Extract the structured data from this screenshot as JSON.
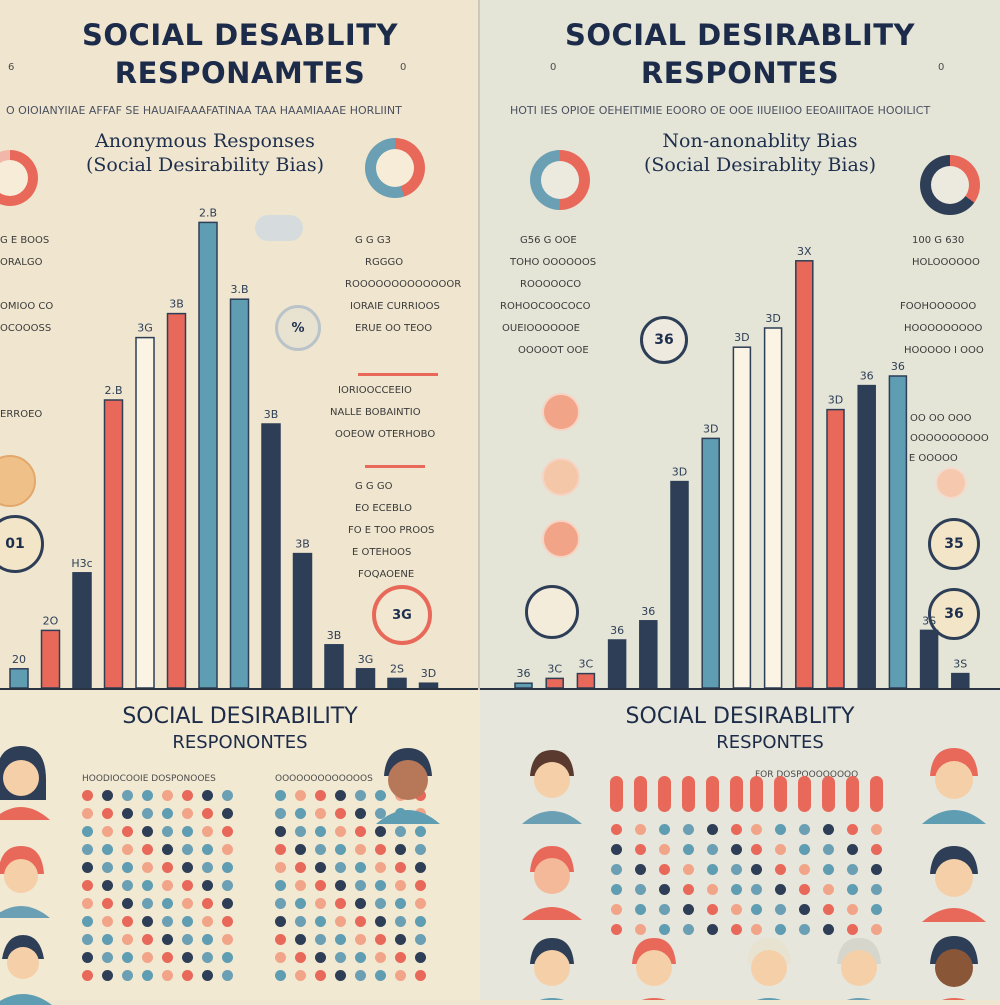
{
  "left": {
    "title_line1": "SOCIAL DESABLITY",
    "title_line2": "RESPONAMTES",
    "marker_left": "6",
    "marker_right": "0",
    "subtitle": "O OIOIANYIIAE AFFAF SE HAUAIFAAAFATINAA TAA HAAMIAAAE HORLIINT",
    "chart_heading_line1": "Anonymous Responses",
    "chart_heading_line2": "(Social Desirability Bias)",
    "side_badge_top": "%",
    "side_badge_bottom": "3G",
    "left_badge": "01",
    "side_text_right": [
      "G G G3",
      "RGGGO",
      "ROOOOOOOOOOOOOR",
      "IORAIE CURRIOOS",
      "ERUE OO TEOO",
      "IORIOOCCEEIO",
      "NALLE BOBAINTIO",
      "OOEOW OTERHOBO",
      "G  G  GO",
      "EO  ECEBLO",
      "FO E TOO PROOS",
      "E OTEHOOS",
      "FOQAOENE"
    ],
    "side_text_left": [
      "G E BOOS",
      "ORALGO",
      "OMIOO CO",
      "OCOOOSS",
      "ERROEO"
    ],
    "bottom_title_line1": "SOCIAL DESIRABILITY",
    "bottom_title_line2": "RESPONONTES",
    "legend_a": "HOODIOCOOIE DOSPONOOES",
    "legend_b": "OOOOOOOOOOOOOS"
  },
  "right": {
    "title_line1": "SOCIAL DESIRABLITY",
    "title_line2": "RESPONTES",
    "marker_left": "0",
    "marker_right": "0",
    "subtitle": "HOTI IES OPIOE OEHEITIMIE EOORO OE OOE IIUEIIOO EEOAIIITAOE HOOILICT",
    "chart_heading_line1": "Non-anonablity Bias",
    "chart_heading_line2": "(Social Desirablity Bias)",
    "side_badge_left": "36",
    "side_badge_right_top": "35",
    "side_badge_right_bottom": "36",
    "side_text_left": [
      "G56 G OOE",
      "TOHO OOOOOOS",
      "ROOOOOCO",
      "ROHOOCOOCOCO",
      "OUEIOOOOOOE",
      "OOOOOT OOE"
    ],
    "side_text_right": [
      "100 G 630",
      "HOLOOOOOO",
      "FOOHOOOOOO",
      "HOOOOOOOOO",
      "HOOOOO I OOO",
      "OO OO OOO",
      "OOOOOOOOOO",
      "G E  OOOOO"
    ],
    "bottom_title_line1": "SOCIAL DESIRABLITY",
    "bottom_title_line2": "RESPONTES",
    "legend_b": "FOR DOSPOOOOOOOO"
  },
  "colors": {
    "red": "#e8695a",
    "blue": "#5f9db2",
    "navy": "#2d3e56",
    "cream": "#fbf4e4"
  },
  "chart_data": [
    {
      "type": "bar",
      "title": "Anonymous Responses (Social Desirability Bias)",
      "categories": [
        "1",
        "2",
        "3",
        "4",
        "5",
        "6",
        "7",
        "8",
        "9",
        "10",
        "11",
        "12",
        "13",
        "14"
      ],
      "values": [
        4,
        12,
        24,
        60,
        73,
        78,
        97,
        81,
        55,
        28,
        9,
        4,
        2,
        1
      ],
      "colors": [
        "blue",
        "red",
        "navy",
        "red",
        "cream",
        "red",
        "blue",
        "blue",
        "navy",
        "navy",
        "navy",
        "navy",
        "navy",
        "navy"
      ],
      "data_labels": [
        "20",
        "2O",
        "H3c",
        "2.B",
        "3G",
        "3B",
        "2.B",
        "3.B",
        "3B",
        "3B",
        "3B",
        "3G",
        "2S",
        "3D"
      ],
      "x_tick_labels": [
        "30",
        "",
        "",
        "",
        "",
        "",
        "",
        "",
        "",
        "",
        "70",
        "35",
        "30",
        "30"
      ],
      "ylim": [
        0,
        100
      ]
    },
    {
      "type": "bar",
      "title": "Non-anonablity Bias (Social Desirability Bias)",
      "categories": [
        "1",
        "2",
        "3",
        "4",
        "5",
        "6",
        "7",
        "8",
        "9",
        "10",
        "11",
        "12",
        "13",
        "14",
        "15"
      ],
      "values": [
        1,
        2,
        3,
        10,
        14,
        43,
        52,
        71,
        75,
        89,
        58,
        63,
        65,
        12,
        3
      ],
      "colors": [
        "blue",
        "red",
        "red",
        "navy",
        "navy",
        "navy",
        "blue",
        "cream",
        "cream",
        "red",
        "red",
        "navy",
        "blue",
        "navy",
        "navy"
      ],
      "data_labels": [
        "36",
        "3C",
        "3C",
        "36",
        "36",
        "3D",
        "3D",
        "3D",
        "3D",
        "3X",
        "3D",
        "36",
        "36",
        "3S",
        "3S"
      ],
      "x_tick_labels": [
        "T",
        "35",
        "30",
        "",
        "",
        "",
        "",
        "",
        "",
        "",
        "",
        "",
        "",
        "35",
        "30"
      ],
      "ylim": [
        0,
        100
      ]
    }
  ]
}
